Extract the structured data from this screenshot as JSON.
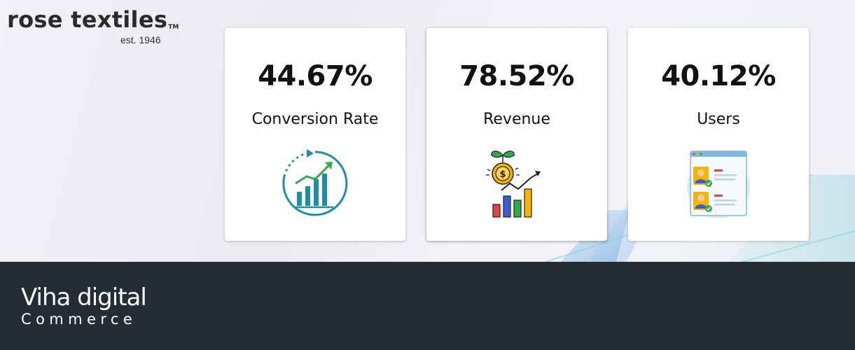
{
  "brand": {
    "name": "rose textiles",
    "trademark": "TM",
    "established": "est. 1946"
  },
  "cards": [
    {
      "value": "44.67%",
      "label": "Conversion Rate",
      "icon": "growth-chart-icon"
    },
    {
      "value": "78.52%",
      "label": "Revenue",
      "icon": "revenue-chart-icon"
    },
    {
      "value": "40.12%",
      "label": "Users",
      "icon": "users-profile-icon"
    }
  ],
  "footer": {
    "logo_line1": "Viha digital",
    "logo_line2": "Commerce"
  },
  "colors": {
    "footer_bg": "#252c36",
    "teal_accent": "#1e8fa3",
    "green_accent": "#2eaa4a",
    "gold_coin": "#f5b400",
    "user_panel": "#7fb6e6"
  }
}
